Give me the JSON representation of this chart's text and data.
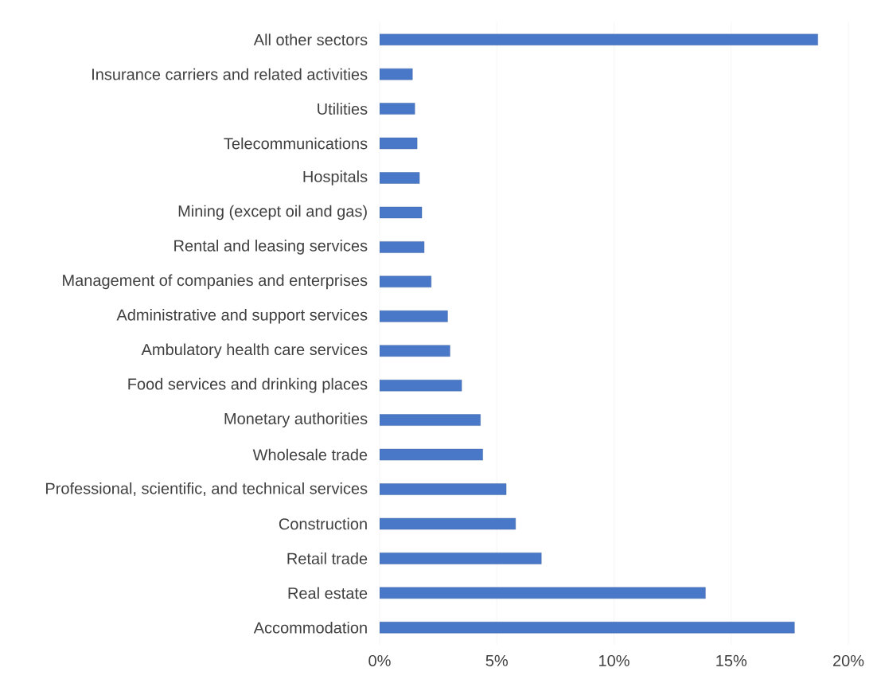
{
  "chart_data": {
    "type": "bar",
    "orientation": "horizontal",
    "categories": [
      "All other sectors",
      "Insurance carriers and related activities",
      "Utilities",
      "Telecommunications",
      "Hospitals",
      "Mining (except oil and gas)",
      "Rental and leasing services",
      "Management of companies and enterprises",
      "Administrative and support services",
      "Ambulatory health care services",
      "Food services and drinking places",
      "Monetary authorities",
      "Wholesale trade",
      "Professional, scientific, and technical services",
      "Construction",
      "Retail trade",
      "Real estate",
      "Accommodation"
    ],
    "values": [
      18.7,
      1.4,
      1.5,
      1.6,
      1.7,
      1.8,
      1.9,
      2.2,
      2.9,
      3.0,
      3.5,
      4.3,
      4.4,
      5.4,
      5.8,
      6.9,
      13.9,
      17.7
    ],
    "color": "#4a78c8",
    "xlim": [
      0,
      20
    ],
    "xticks": [
      {
        "value": 0,
        "label": "0%"
      },
      {
        "value": 5,
        "label": "5%"
      },
      {
        "value": 10,
        "label": "10%"
      },
      {
        "value": 15,
        "label": "15%"
      },
      {
        "value": 20,
        "label": "20%"
      }
    ],
    "grid": "x"
  }
}
